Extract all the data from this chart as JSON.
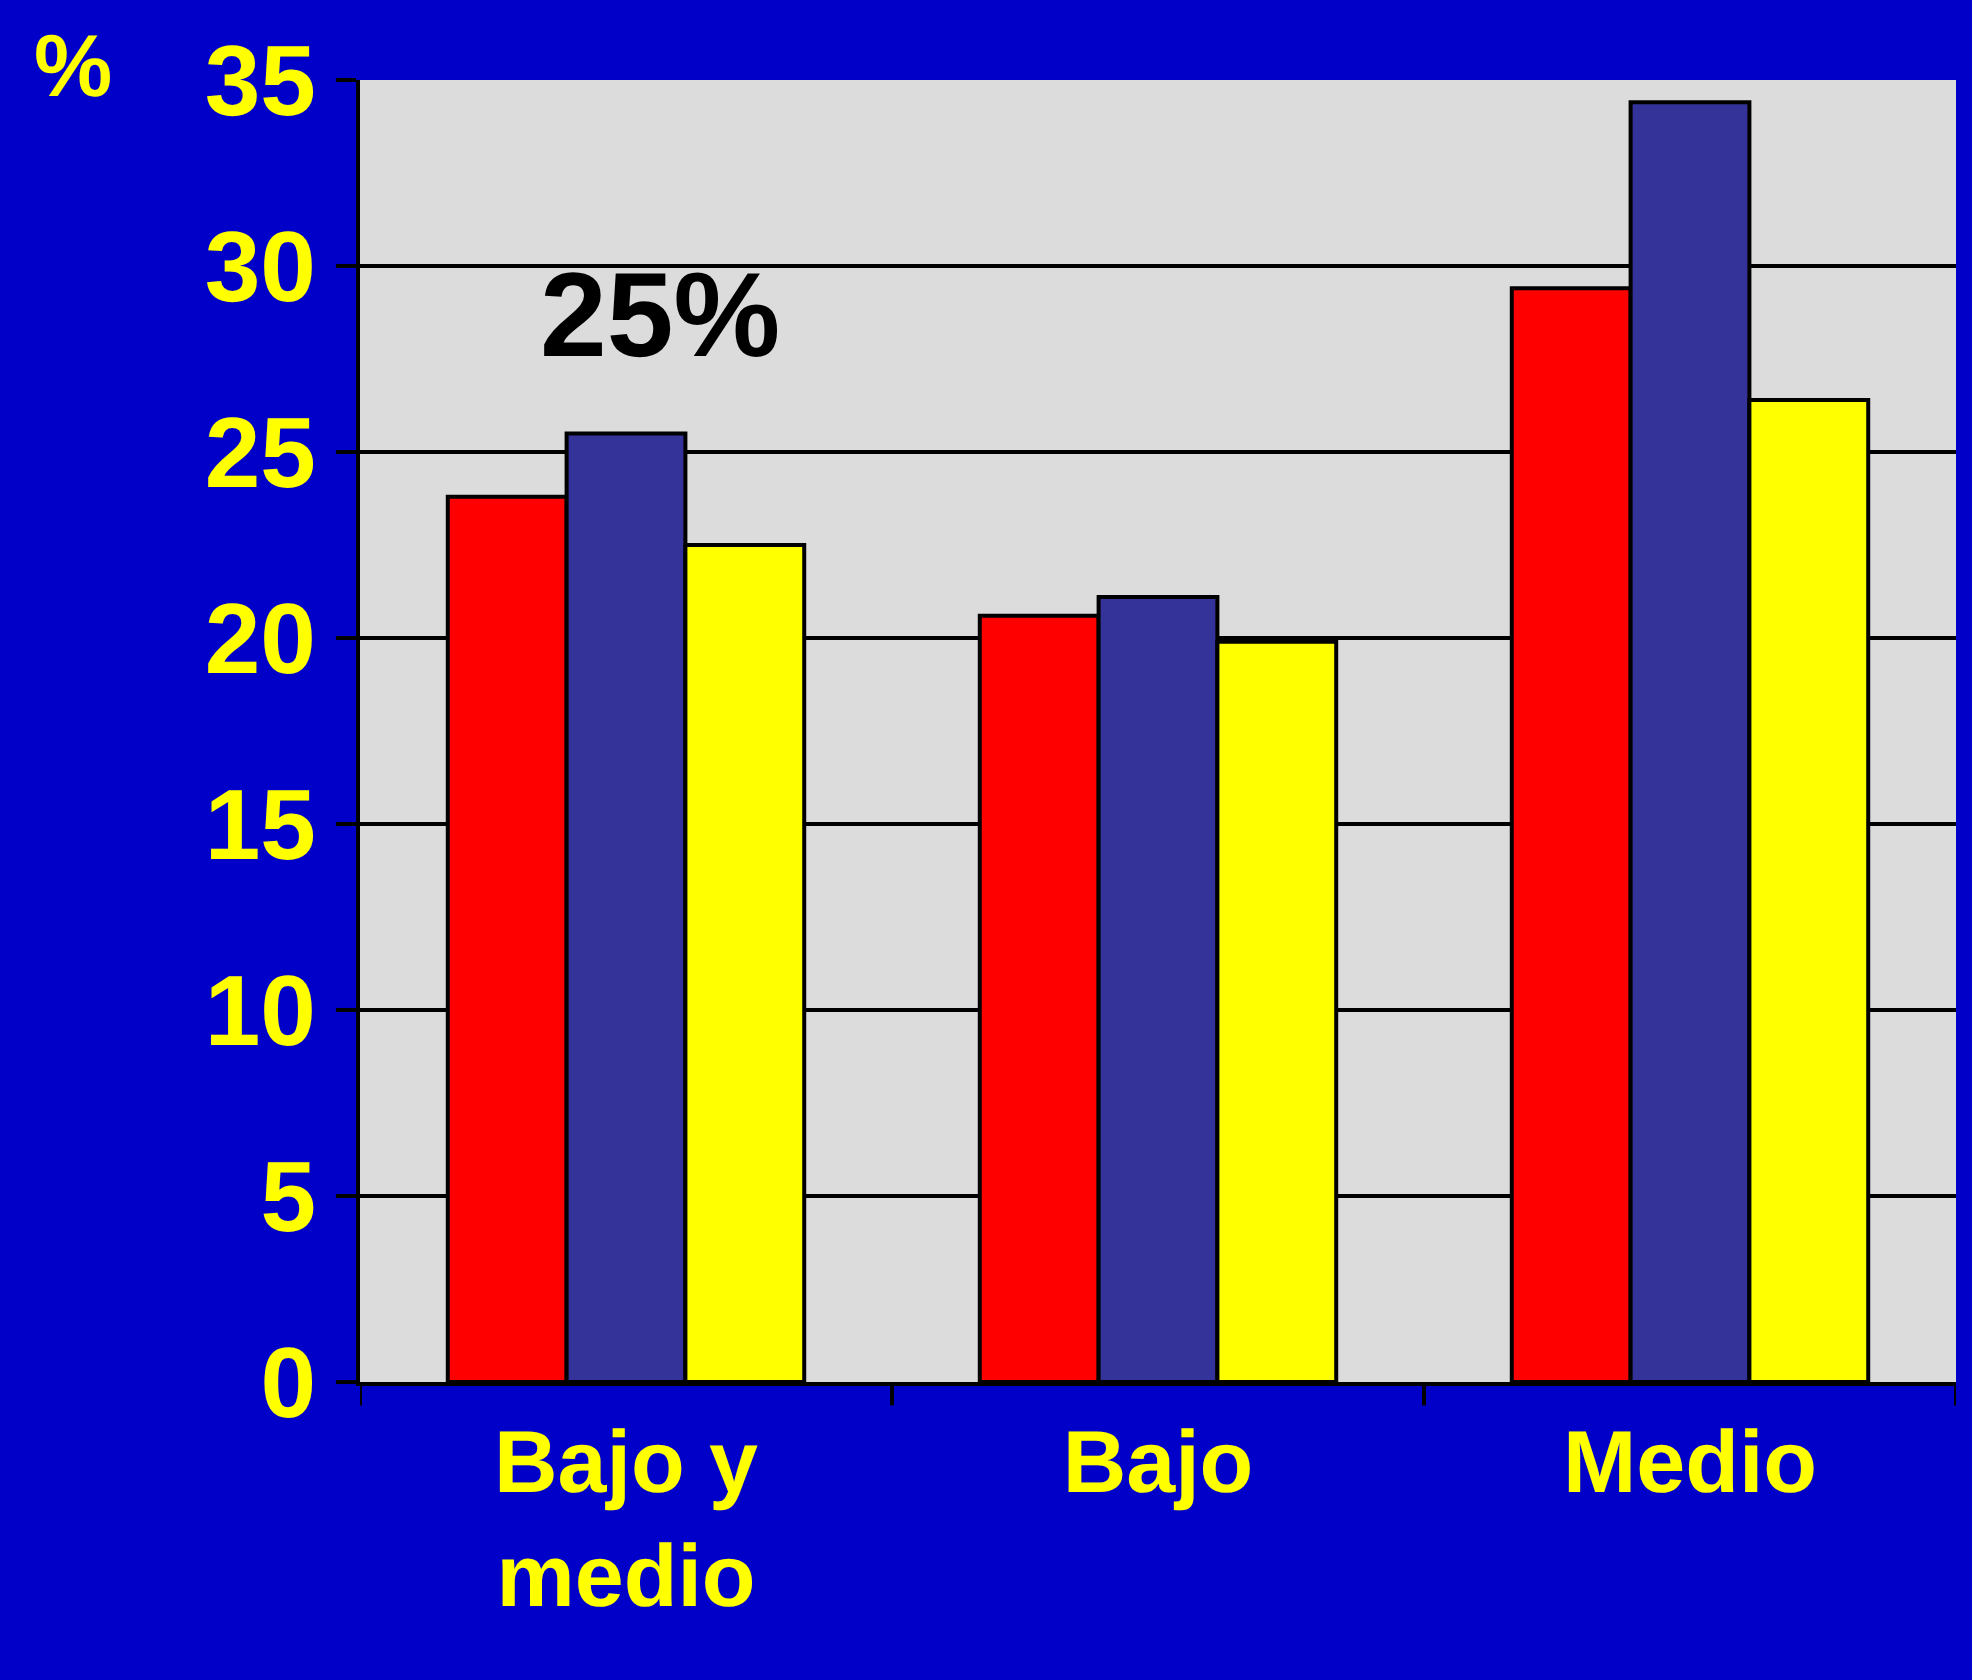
{
  "chart_data": {
    "type": "bar",
    "ylabel": "%",
    "categories": [
      "Bajo y medio",
      "Bajo",
      "Medio"
    ],
    "series": [
      {
        "color": "#ff0000",
        "values": [
          23.8,
          20.6,
          29.4
        ]
      },
      {
        "color": "#333399",
        "values": [
          25.5,
          21.1,
          34.4
        ]
      },
      {
        "color": "#ffff00",
        "values": [
          22.5,
          19.9,
          26.4
        ]
      }
    ],
    "ylim": [
      0,
      35
    ],
    "yticks": [
      0,
      5,
      10,
      15,
      20,
      25,
      30,
      35
    ],
    "annotations": [
      "25%"
    ],
    "grid": "y"
  }
}
